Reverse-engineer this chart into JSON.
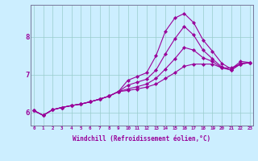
{
  "xlabel": "Windchill (Refroidissement éolien,°C)",
  "background_color": "#cceeff",
  "line_color": "#990099",
  "grid_color": "#99cccc",
  "x_ticks": [
    0,
    1,
    2,
    3,
    4,
    5,
    6,
    7,
    8,
    9,
    10,
    11,
    12,
    13,
    14,
    15,
    16,
    17,
    18,
    19,
    20,
    21,
    22,
    23
  ],
  "y_ticks": [
    6,
    7,
    8
  ],
  "xlim": [
    -0.3,
    23.3
  ],
  "ylim": [
    5.65,
    8.85
  ],
  "curves": [
    [
      6.05,
      5.92,
      6.07,
      6.13,
      6.18,
      6.22,
      6.28,
      6.35,
      6.43,
      6.55,
      6.85,
      6.95,
      7.05,
      7.5,
      8.15,
      8.5,
      8.62,
      8.38,
      7.92,
      7.62,
      7.3,
      7.15,
      7.35,
      7.32
    ],
    [
      6.05,
      5.92,
      6.07,
      6.13,
      6.18,
      6.22,
      6.28,
      6.35,
      6.43,
      6.55,
      6.72,
      6.8,
      6.88,
      7.12,
      7.55,
      7.95,
      8.28,
      8.05,
      7.65,
      7.42,
      7.2,
      7.12,
      7.3,
      7.32
    ],
    [
      6.05,
      5.92,
      6.07,
      6.13,
      6.18,
      6.22,
      6.28,
      6.35,
      6.43,
      6.55,
      6.62,
      6.68,
      6.75,
      6.9,
      7.15,
      7.42,
      7.72,
      7.65,
      7.45,
      7.35,
      7.18,
      7.12,
      7.28,
      7.32
    ],
    [
      6.05,
      5.92,
      6.07,
      6.13,
      6.18,
      6.22,
      6.28,
      6.35,
      6.43,
      6.55,
      6.58,
      6.62,
      6.67,
      6.75,
      6.9,
      7.05,
      7.22,
      7.28,
      7.28,
      7.28,
      7.18,
      7.18,
      7.28,
      7.32
    ]
  ]
}
